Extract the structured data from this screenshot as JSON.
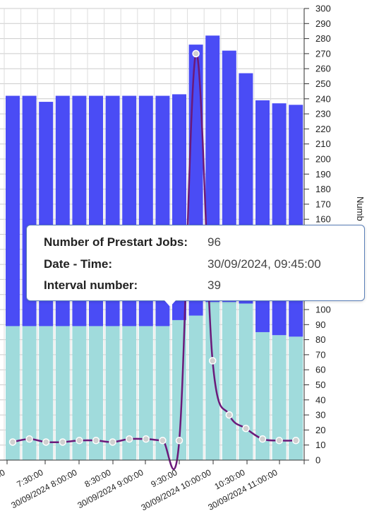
{
  "chart_data": {
    "type": "bar",
    "stacked": true,
    "ylabel": "Numb",
    "ylim": [
      0,
      300
    ],
    "y_ticks": [
      0,
      10,
      20,
      30,
      40,
      50,
      60,
      70,
      80,
      90,
      100,
      110,
      120,
      130,
      140,
      150,
      160,
      170,
      180,
      190,
      200,
      210,
      220,
      230,
      240,
      250,
      260,
      270,
      280,
      290,
      300
    ],
    "x_tick_labels": [
      "00",
      "7:30:00",
      "30/09/2024 8:00:00",
      "8:30:00",
      "30/09/2024 9:00:00",
      "9:30:00",
      "30/09/2024 10:00:00",
      "10:30:00",
      "30/09/2024 11:00:00"
    ],
    "grid": true,
    "series": [
      {
        "color": "#a0dbdc",
        "values": [
          89,
          89,
          89,
          89,
          89,
          89,
          89,
          89,
          89,
          89,
          93,
          96,
          105,
          105,
          104,
          85,
          83,
          82
        ]
      },
      {
        "color": "#4a4cf5",
        "values": [
          153,
          153,
          149,
          153,
          153,
          153,
          153,
          153,
          153,
          153,
          150,
          180,
          177,
          167,
          153,
          154,
          154,
          154
        ]
      },
      {
        "type": "line",
        "color": "#6b1a7a",
        "values": [
          12,
          14,
          12,
          12,
          13,
          13,
          12,
          14,
          14,
          13,
          13,
          270,
          66,
          30,
          21,
          14,
          13,
          13
        ]
      }
    ]
  },
  "tooltip": {
    "rows": [
      {
        "key": "Number of Prestart Jobs:",
        "value": "96"
      },
      {
        "key": "Date - Time:",
        "value": "30/09/2024, 09:45:00"
      },
      {
        "key": "Interval number:",
        "value": "39"
      }
    ]
  }
}
